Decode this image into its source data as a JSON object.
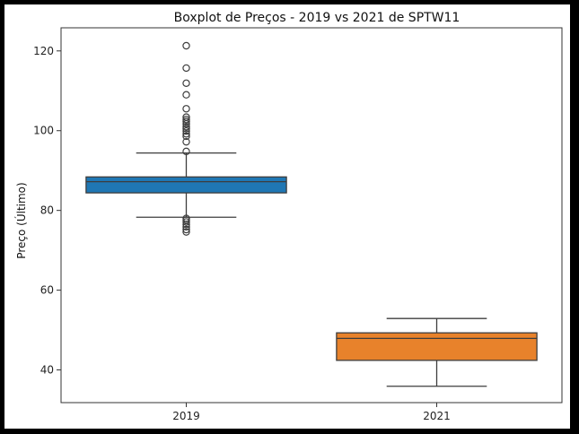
{
  "chart_data": {
    "type": "box",
    "title": "Boxplot de Preços - 2019 vs 2021 de SPTW11",
    "xlabel": "",
    "ylabel": "Preço (Último)",
    "ylim": [
      31.8,
      125.8
    ],
    "yticks": [
      40,
      60,
      80,
      100,
      120
    ],
    "categories": [
      "2019",
      "2021"
    ],
    "boxes": [
      {
        "category": "2019",
        "color": "#1f77b4",
        "whisker_low": 78.3,
        "q1": 84.4,
        "median": 87.2,
        "q3": 88.4,
        "whisker_high": 94.4,
        "outliers": [
          121.3,
          115.7,
          111.9,
          109.0,
          105.5,
          103.4,
          102.8,
          102.3,
          101.7,
          101.0,
          100.5,
          99.9,
          99.2,
          98.6,
          97.2,
          94.8,
          78.0,
          77.6,
          77.1,
          76.5,
          75.9,
          75.2,
          74.6
        ]
      },
      {
        "category": "2021",
        "color": "#e8822b",
        "whisker_low": 35.9,
        "q1": 42.4,
        "median": 47.9,
        "q3": 49.3,
        "whisker_high": 52.9,
        "outliers": []
      }
    ]
  }
}
